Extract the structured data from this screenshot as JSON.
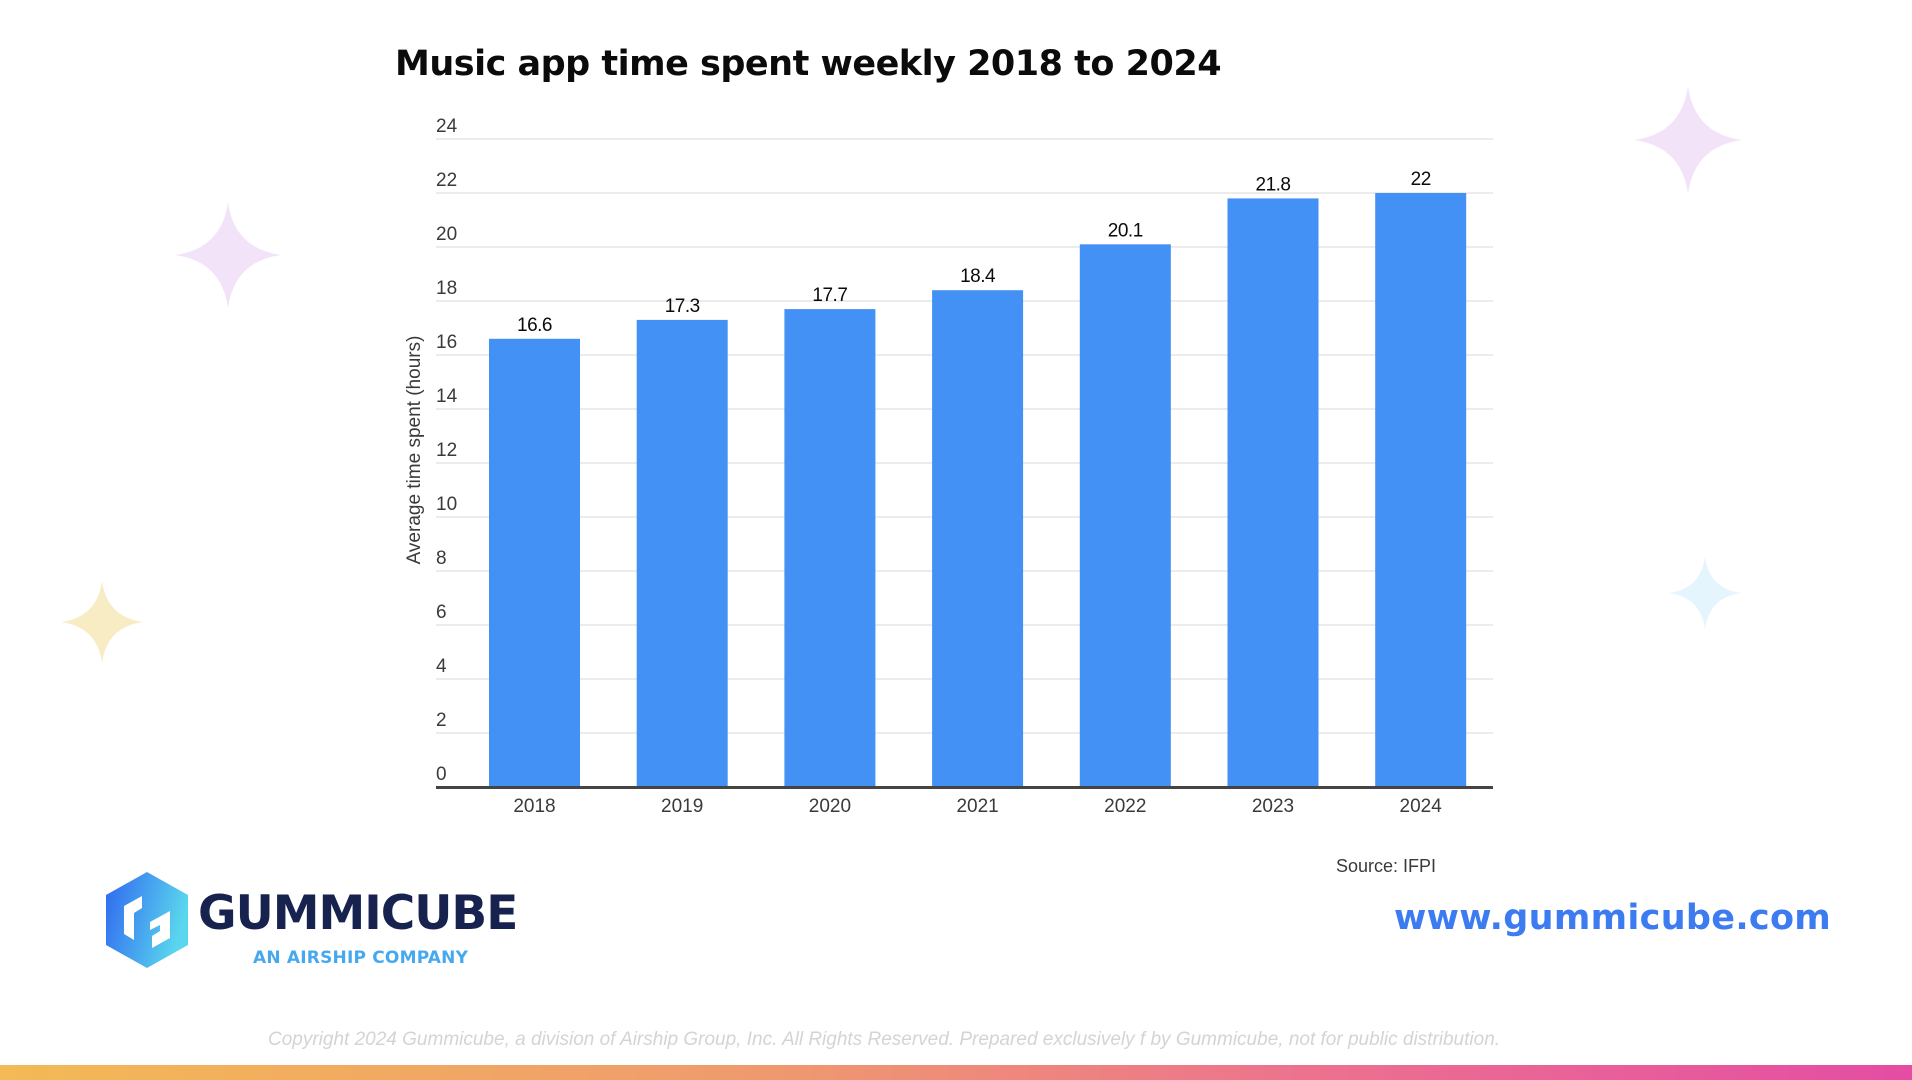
{
  "chart_data": {
    "type": "bar",
    "title": "Music app time spent weekly 2018 to 2024",
    "categories": [
      "2018",
      "2019",
      "2020",
      "2021",
      "2022",
      "2023",
      "2024"
    ],
    "values": [
      16.6,
      17.3,
      17.7,
      18.4,
      20.1,
      21.8,
      22
    ],
    "value_labels": [
      "16.6",
      "17.3",
      "17.7",
      "18.4",
      "20.1",
      "21.8",
      "22"
    ],
    "xlabel": "",
    "ylabel": "Average time spent (hours)",
    "ylim": [
      0,
      24
    ],
    "yticks": [
      0,
      2,
      4,
      6,
      8,
      10,
      12,
      14,
      16,
      18,
      20,
      22,
      24
    ],
    "grid": true,
    "legend": null,
    "bar_color": "#4391f5"
  },
  "header": {
    "title": "Music app time spent weekly 2018 to 2024"
  },
  "footer": {
    "source": "Source: IFPI",
    "website": "www.gummicube.com",
    "copyright": "Copyright 2024 Gummicube, a division of Airship Group, Inc. All Rights Reserved. Prepared exclusively f by Gummicube, not for public distribution."
  },
  "logo": {
    "name": "GUMMICUBE",
    "tagline": "AN AIRSHIP COMPANY"
  },
  "colors": {
    "bar": "#4391f5",
    "website": "#3d7bf0",
    "logo_text": "#17224f",
    "logo_tagline": "#46a8ef",
    "grid": "#e6e6e6",
    "axis": "#444444"
  },
  "decorations": [
    {
      "icon": "sparkle-icon",
      "color": "#f3e3f9"
    },
    {
      "icon": "sparkle-icon",
      "color": "#f3e3f9"
    },
    {
      "icon": "sparkle-icon",
      "color": "#f8ecc4"
    },
    {
      "icon": "sparkle-icon",
      "color": "#e4f5fd"
    }
  ]
}
